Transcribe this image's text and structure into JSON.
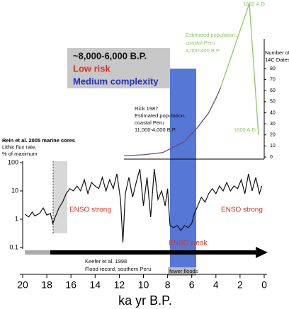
{
  "chart_data": [
    {
      "type": "line",
      "ylabel": [
        "Rein et al. 2005 marine cores",
        "Lithic flux rate,",
        "% of maximum"
      ],
      "xlabel": "ka yr B.P.",
      "xlim": [
        20,
        0
      ],
      "xticks": [
        20,
        18,
        16,
        14,
        12,
        10,
        8,
        6,
        4,
        2,
        0
      ],
      "ylim": [
        0.1,
        100
      ],
      "yticks": [
        0.1,
        1,
        10,
        100
      ],
      "log_y": true,
      "series": [
        {
          "color": "#111111",
          "x": [
            19.8,
            19.5,
            19.2,
            19,
            18.6,
            18.3,
            18,
            17.7,
            17.5,
            17.3,
            17,
            16.7,
            16.4,
            16.1,
            15.8,
            15.5,
            15.2,
            14.9,
            14.6,
            14.3,
            14,
            13.7,
            13.4,
            13.1,
            12.8,
            12.5,
            12.2,
            11.9,
            11.7,
            11.5,
            11.2,
            10.9,
            10.6,
            10.3,
            10,
            9.7,
            9.4,
            9.1,
            8.8,
            8.5,
            8.2,
            8,
            7.8,
            7.5,
            7.2,
            6.9,
            6.6,
            6.3,
            6,
            5.8,
            5.5,
            5.2,
            4.9,
            4.6,
            4.3,
            4,
            3.7,
            3.4,
            3.1,
            2.8,
            2.5,
            2.2,
            1.9,
            1.6,
            1.3,
            1,
            0.7,
            0.4,
            0.2
          ],
          "values": [
            1.5,
            1.2,
            1.8,
            1.3,
            1.6,
            2.5,
            1.4,
            1.6,
            0.7,
            1.2,
            2.5,
            4,
            8,
            12,
            10,
            15,
            10,
            25,
            8,
            20,
            15,
            12,
            30,
            10,
            25,
            12,
            40,
            5,
            0.15,
            8,
            30,
            6,
            20,
            60,
            3,
            30,
            1.2,
            60,
            5,
            10,
            3,
            12,
            0.6,
            0.5,
            0.6,
            0.4,
            0.6,
            0.5,
            0.7,
            1.5,
            3,
            6,
            4,
            8,
            12,
            8,
            15,
            10,
            20,
            10,
            15,
            12,
            25,
            8,
            40,
            10,
            30,
            8,
            15
          ]
        }
      ],
      "annotations": [
        {
          "text": "ENSO strong",
          "color": "#e03020"
        },
        {
          "text": "ENSO weak",
          "color": "#e03020"
        },
        {
          "text": "ENSO strong",
          "color": "#e03020"
        },
        {
          "text": "Keefer et al. 1998",
          "color": "#111111"
        },
        {
          "text": "Flood record, southern Peru",
          "color": "#111111"
        },
        {
          "text": "fewer floods",
          "color": "#111111"
        },
        {
          "text": "~8,000-6,000 B.P.",
          "color": "#111111"
        },
        {
          "text": "Low risk",
          "color": "#e03020"
        },
        {
          "text": "Medium complexity",
          "color": "#2030c0"
        }
      ]
    },
    {
      "type": "line",
      "ylabel": [
        "Number of",
        "14C Dates"
      ],
      "xlim": [
        20,
        0
      ],
      "ylim": [
        0,
        80
      ],
      "yticks": [
        0,
        10,
        20,
        30,
        40,
        50,
        60,
        70,
        80
      ],
      "series": [
        {
          "color": "#6a4a7a",
          "x": [
            11.6,
            10,
            8.4,
            6.6,
            5.5,
            4.6,
            4.0,
            3.6
          ],
          "values": [
            1,
            2,
            4,
            14,
            27,
            40,
            53,
            63
          ]
        },
        {
          "color": "#8cc860",
          "x": [
            3.6,
            1.23,
            0.47
          ],
          "values": [
            63,
            139,
            20
          ]
        }
      ],
      "annotations": [
        {
          "text": "Rick 1987",
          "color": "#111111"
        },
        {
          "text": "Estimated population,",
          "color": "#111111"
        },
        {
          "text": "coastal Peru",
          "color": "#111111"
        },
        {
          "text": "11,000-4,000 B.P.",
          "color": "#111111"
        },
        {
          "text": "Estimated population,",
          "color": "#8cc860"
        },
        {
          "text": "coastal Peru",
          "color": "#8cc860"
        },
        {
          "text": "4,000-400 B.P.",
          "color": "#8cc860"
        },
        {
          "text": "1532 A.D.",
          "color": "#8cc860"
        },
        {
          "text": "1600 A.D.",
          "color": "#8cc860"
        }
      ]
    }
  ]
}
